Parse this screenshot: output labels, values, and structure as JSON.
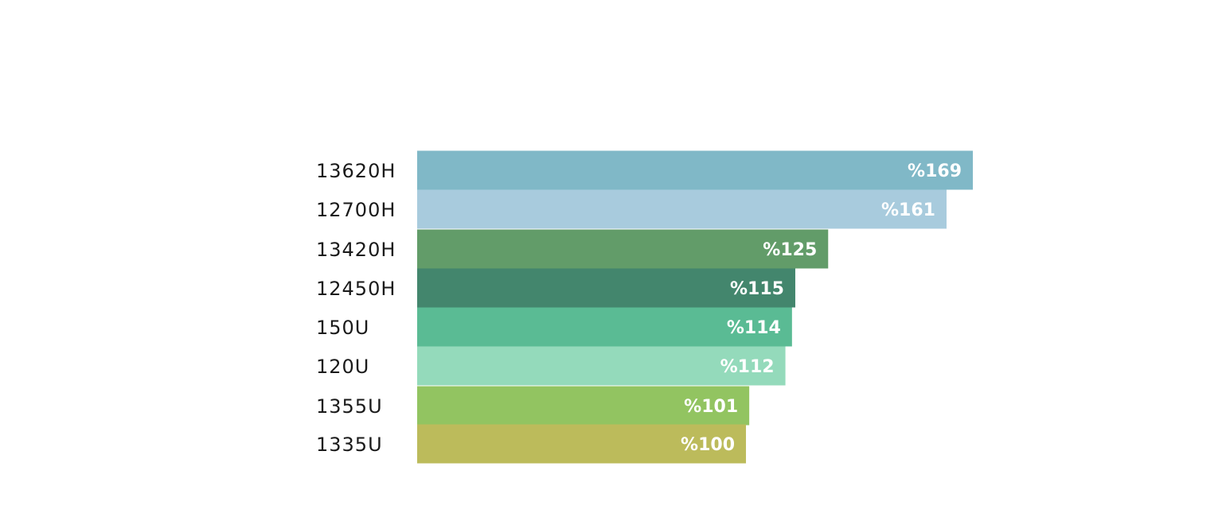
{
  "chart_data": {
    "type": "bar",
    "orientation": "horizontal",
    "categories": [
      "13620H",
      "12700H",
      "13420H",
      "12450H",
      "150U",
      "120U",
      "1355U",
      "1335U"
    ],
    "values": [
      169,
      161,
      125,
      115,
      114,
      112,
      101,
      100
    ],
    "value_labels": [
      "%169",
      "%161",
      "%125",
      "%115",
      "%114",
      "%112",
      "%101",
      "%100"
    ],
    "colors": [
      "#80b8c7",
      "#a8cbdd",
      "#629c69",
      "#43866d",
      "#5abb94",
      "#94dabb",
      "#92c461",
      "#bcbb5b"
    ],
    "title": "",
    "xlabel": "",
    "ylabel": "",
    "grid": false,
    "legend": "none"
  }
}
